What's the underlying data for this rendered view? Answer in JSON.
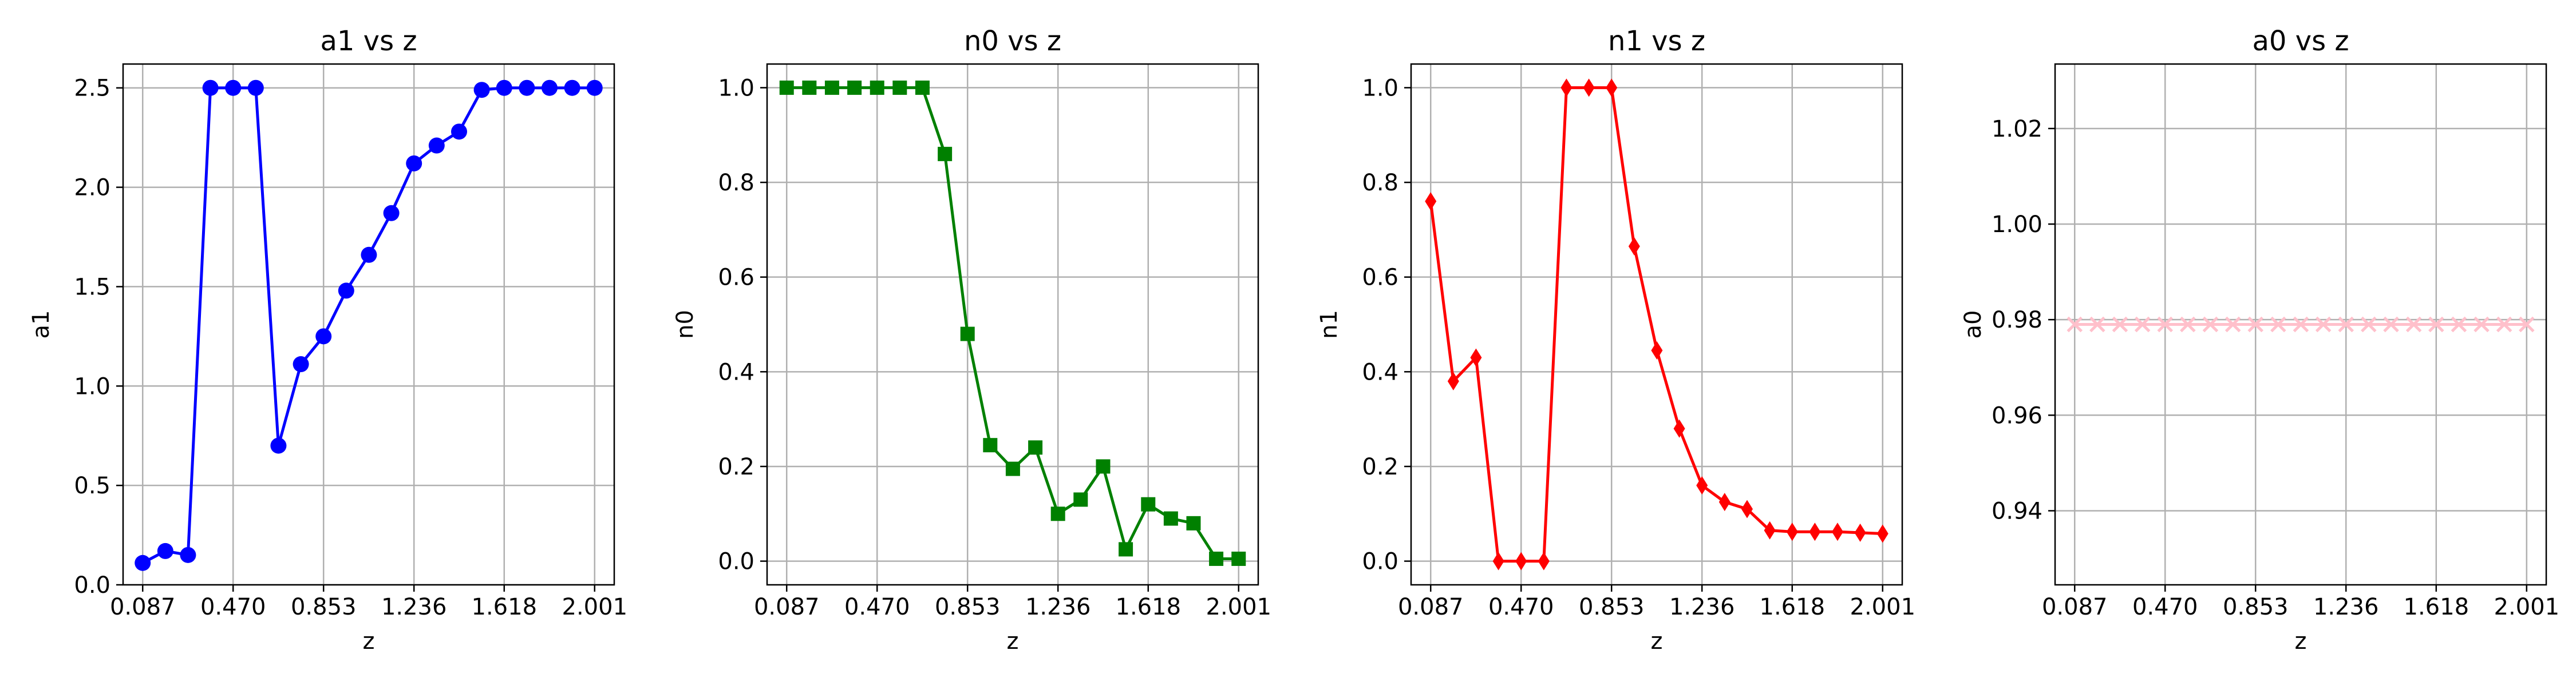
{
  "chart_data": [
    {
      "type": "line",
      "title": "a1 vs z",
      "xlabel": "z",
      "ylabel": "a1",
      "xlim": [
        0.004,
        2.084
      ],
      "ylim": [
        0.0,
        2.62
      ],
      "xticks": [
        0.087,
        0.47,
        0.853,
        1.236,
        1.618,
        2.001
      ],
      "xtick_labels": [
        "0.087",
        "0.470",
        "0.853",
        "1.236",
        "1.618",
        "2.001"
      ],
      "yticks": [
        0.0,
        0.5,
        1.0,
        1.5,
        2.0,
        2.5
      ],
      "ytick_labels": [
        "0.0",
        "0.5",
        "1.0",
        "1.5",
        "2.0",
        "2.5"
      ],
      "grid": true,
      "series": [
        {
          "color": "#0000ff",
          "marker": "circle",
          "x": [
            0.087,
            0.183,
            0.279,
            0.374,
            0.47,
            0.566,
            0.662,
            0.757,
            0.853,
            0.949,
            1.045,
            1.14,
            1.236,
            1.332,
            1.427,
            1.523,
            1.618,
            1.714,
            1.81,
            1.906,
            2.001
          ],
          "y": [
            0.11,
            0.17,
            0.15,
            2.5,
            2.5,
            2.5,
            0.7,
            1.11,
            1.25,
            1.48,
            1.66,
            1.87,
            2.12,
            2.21,
            2.28,
            2.49,
            2.5,
            2.5,
            2.5,
            2.5,
            2.5
          ]
        }
      ]
    },
    {
      "type": "line",
      "title": "n0 vs z",
      "xlabel": "z",
      "ylabel": "n0",
      "xlim": [
        0.004,
        2.084
      ],
      "ylim": [
        -0.05,
        1.05
      ],
      "xticks": [
        0.087,
        0.47,
        0.853,
        1.236,
        1.618,
        2.001
      ],
      "xtick_labels": [
        "0.087",
        "0.470",
        "0.853",
        "1.236",
        "1.618",
        "2.001"
      ],
      "yticks": [
        0.0,
        0.2,
        0.4,
        0.6,
        0.8,
        1.0
      ],
      "ytick_labels": [
        "0.0",
        "0.2",
        "0.4",
        "0.6",
        "0.8",
        "1.0"
      ],
      "grid": true,
      "series": [
        {
          "color": "#008000",
          "marker": "square",
          "x": [
            0.087,
            0.183,
            0.279,
            0.374,
            0.47,
            0.566,
            0.662,
            0.757,
            0.853,
            0.949,
            1.045,
            1.14,
            1.236,
            1.332,
            1.427,
            1.523,
            1.618,
            1.714,
            1.81,
            1.906,
            2.001
          ],
          "y": [
            1.0,
            1.0,
            1.0,
            1.0,
            1.0,
            1.0,
            1.0,
            0.86,
            0.48,
            0.245,
            0.195,
            0.24,
            0.1,
            0.13,
            0.2,
            0.025,
            0.12,
            0.09,
            0.08,
            0.005,
            0.005
          ]
        }
      ]
    },
    {
      "type": "line",
      "title": "n1 vs z",
      "xlabel": "z",
      "ylabel": "n1",
      "xlim": [
        0.004,
        2.084
      ],
      "ylim": [
        -0.05,
        1.05
      ],
      "xticks": [
        0.087,
        0.47,
        0.853,
        1.236,
        1.618,
        2.001
      ],
      "xtick_labels": [
        "0.087",
        "0.470",
        "0.853",
        "1.236",
        "1.618",
        "2.001"
      ],
      "yticks": [
        0.0,
        0.2,
        0.4,
        0.6,
        0.8,
        1.0
      ],
      "ytick_labels": [
        "0.0",
        "0.2",
        "0.4",
        "0.6",
        "0.8",
        "1.0"
      ],
      "grid": true,
      "series": [
        {
          "color": "#ff0000",
          "marker": "diamond",
          "x": [
            0.087,
            0.183,
            0.279,
            0.374,
            0.47,
            0.566,
            0.662,
            0.757,
            0.853,
            0.949,
            1.045,
            1.14,
            1.236,
            1.332,
            1.427,
            1.523,
            1.618,
            1.714,
            1.81,
            1.906,
            2.001
          ],
          "y": [
            0.76,
            0.38,
            0.43,
            0.0,
            0.0,
            0.0,
            1.0,
            1.0,
            1.0,
            0.665,
            0.445,
            0.28,
            0.16,
            0.125,
            0.11,
            0.065,
            0.062,
            0.062,
            0.062,
            0.06,
            0.058
          ]
        }
      ]
    },
    {
      "type": "line",
      "title": "a0 vs z",
      "xlabel": "z",
      "ylabel": "a0",
      "xlim": [
        0.004,
        2.084
      ],
      "ylim": [
        0.9245,
        1.0335
      ],
      "xticks": [
        0.087,
        0.47,
        0.853,
        1.236,
        1.618,
        2.001
      ],
      "xtick_labels": [
        "0.087",
        "0.470",
        "0.853",
        "1.236",
        "1.618",
        "2.001"
      ],
      "yticks": [
        0.94,
        0.96,
        0.98,
        1.0,
        1.02
      ],
      "ytick_labels": [
        "0.94",
        "0.96",
        "0.98",
        "1.00",
        "1.02"
      ],
      "grid": true,
      "series": [
        {
          "color": "#ffc0cb",
          "marker": "x",
          "x": [
            0.087,
            0.183,
            0.279,
            0.374,
            0.47,
            0.566,
            0.662,
            0.757,
            0.853,
            0.949,
            1.045,
            1.14,
            1.236,
            1.332,
            1.427,
            1.523,
            1.618,
            1.714,
            1.81,
            1.906,
            2.001
          ],
          "y": [
            0.979,
            0.979,
            0.979,
            0.979,
            0.979,
            0.979,
            0.979,
            0.979,
            0.979,
            0.979,
            0.979,
            0.979,
            0.979,
            0.979,
            0.979,
            0.979,
            0.979,
            0.979,
            0.979,
            0.979,
            0.979
          ]
        }
      ]
    }
  ]
}
